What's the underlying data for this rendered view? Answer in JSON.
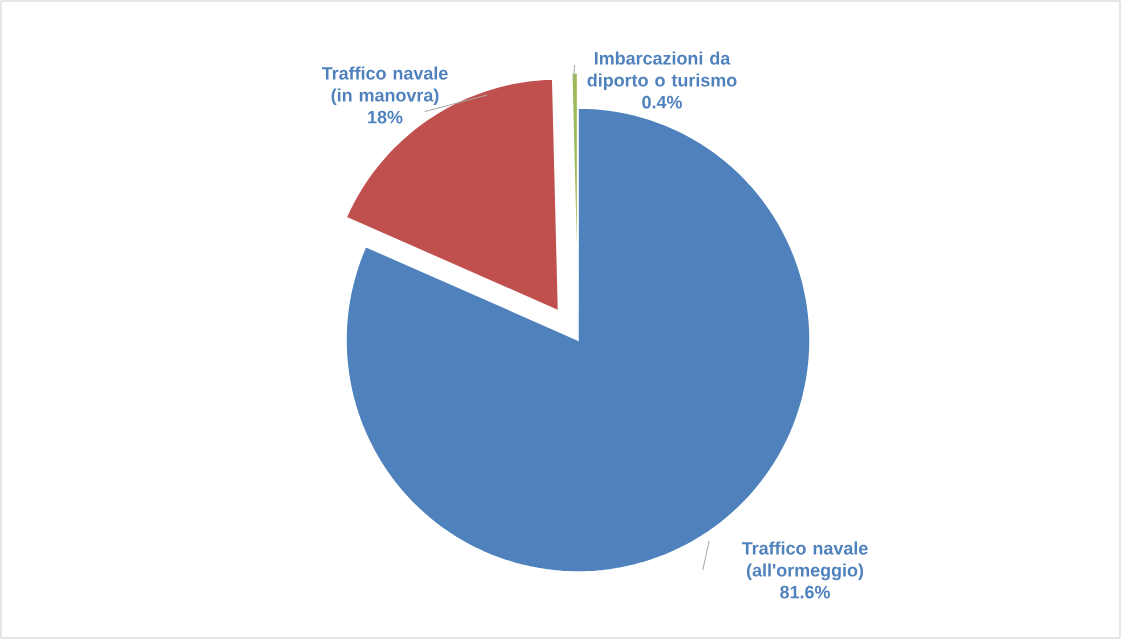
{
  "chart_data": {
    "type": "pie",
    "categories": [
      "Traffico navale (all'ormeggio)",
      "Traffico navale (in manovra)",
      "Imbarcazioni da diporto o turismo"
    ],
    "values": [
      81.6,
      18,
      0.4
    ],
    "value_labels": [
      "81.6%",
      "18%",
      "0.4%"
    ],
    "colors": [
      "#4f81bd",
      "#c0504d",
      "#9bbb59"
    ]
  }
}
